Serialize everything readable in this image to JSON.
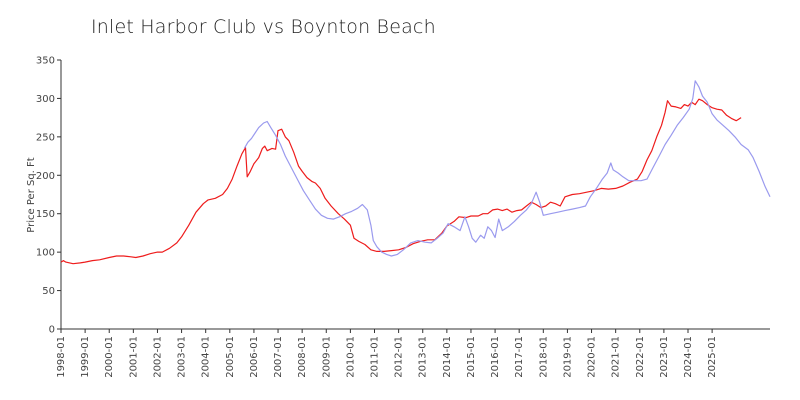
{
  "chart_data": {
    "type": "line",
    "title": "Inlet Harbor Club vs Boynton Beach",
    "xlabel": "",
    "ylabel": "Price Per Sq. Ft",
    "ylim": [
      0,
      350
    ],
    "yticks": [
      0,
      50,
      100,
      150,
      200,
      250,
      300,
      350
    ],
    "xlim": [
      1998.0,
      2026.2
    ],
    "xticks": [
      "1998-01",
      "1999-01",
      "2000-01",
      "2001-01",
      "2002-01",
      "2003-01",
      "2004-01",
      "2005-01",
      "2006-01",
      "2007-01",
      "2008-01",
      "2009-01",
      "2010-01",
      "2011-01",
      "2012-01",
      "2013-01",
      "2014-01",
      "2015-01",
      "2016-01",
      "2017-01",
      "2018-01",
      "2019-01",
      "2020-01",
      "2021-01",
      "2022-01",
      "2023-01",
      "2024-01",
      "2025-01"
    ],
    "grid": false,
    "legend": "none",
    "series": [
      {
        "color": "#ee1c1c",
        "points": [
          [
            1998.0,
            87
          ],
          [
            1998.1,
            89
          ],
          [
            1998.2,
            87
          ],
          [
            1998.5,
            85
          ],
          [
            1998.8,
            86
          ],
          [
            1999.0,
            87
          ],
          [
            1999.3,
            89
          ],
          [
            1999.6,
            90
          ],
          [
            2000.0,
            93
          ],
          [
            2000.3,
            95
          ],
          [
            2000.6,
            95
          ],
          [
            2000.9,
            94
          ],
          [
            2001.1,
            93
          ],
          [
            2001.4,
            95
          ],
          [
            2001.7,
            98
          ],
          [
            2002.0,
            100
          ],
          [
            2002.2,
            100
          ],
          [
            2002.5,
            105
          ],
          [
            2002.8,
            112
          ],
          [
            2003.0,
            120
          ],
          [
            2003.3,
            135
          ],
          [
            2003.6,
            152
          ],
          [
            2003.9,
            163
          ],
          [
            2004.1,
            168
          ],
          [
            2004.4,
            170
          ],
          [
            2004.7,
            175
          ],
          [
            2004.9,
            183
          ],
          [
            2005.1,
            195
          ],
          [
            2005.3,
            212
          ],
          [
            2005.5,
            228
          ],
          [
            2005.65,
            236
          ],
          [
            2005.72,
            198
          ],
          [
            2005.85,
            205
          ],
          [
            2006.0,
            215
          ],
          [
            2006.2,
            223
          ],
          [
            2006.35,
            235
          ],
          [
            2006.45,
            238
          ],
          [
            2006.55,
            232
          ],
          [
            2006.75,
            235
          ],
          [
            2006.9,
            234
          ],
          [
            2007.0,
            258
          ],
          [
            2007.15,
            260
          ],
          [
            2007.3,
            250
          ],
          [
            2007.45,
            245
          ],
          [
            2007.65,
            230
          ],
          [
            2007.85,
            212
          ],
          [
            2008.0,
            205
          ],
          [
            2008.2,
            197
          ],
          [
            2008.4,
            192
          ],
          [
            2008.55,
            190
          ],
          [
            2008.75,
            183
          ],
          [
            2008.95,
            170
          ],
          [
            2009.2,
            160
          ],
          [
            2009.5,
            150
          ],
          [
            2009.75,
            143
          ],
          [
            2010.0,
            135
          ],
          [
            2010.15,
            118
          ],
          [
            2010.35,
            114
          ],
          [
            2010.6,
            110
          ],
          [
            2010.85,
            103
          ],
          [
            2011.1,
            101
          ],
          [
            2011.4,
            101
          ],
          [
            2011.7,
            102
          ],
          [
            2012.0,
            103
          ],
          [
            2012.3,
            106
          ],
          [
            2012.6,
            111
          ],
          [
            2012.9,
            114
          ],
          [
            2013.2,
            116
          ],
          [
            2013.5,
            116
          ],
          [
            2013.8,
            125
          ],
          [
            2014.0,
            134
          ],
          [
            2014.3,
            140
          ],
          [
            2014.5,
            146
          ],
          [
            2014.8,
            145
          ],
          [
            2015.0,
            147
          ],
          [
            2015.3,
            147
          ],
          [
            2015.5,
            150
          ],
          [
            2015.7,
            150
          ],
          [
            2015.9,
            155
          ],
          [
            2016.1,
            156
          ],
          [
            2016.3,
            154
          ],
          [
            2016.5,
            156
          ],
          [
            2016.7,
            152
          ],
          [
            2016.9,
            154
          ],
          [
            2017.1,
            155
          ],
          [
            2017.3,
            160
          ],
          [
            2017.5,
            165
          ],
          [
            2017.7,
            162
          ],
          [
            2017.9,
            158
          ],
          [
            2018.1,
            160
          ],
          [
            2018.3,
            165
          ],
          [
            2018.5,
            163
          ],
          [
            2018.7,
            160
          ],
          [
            2018.9,
            172
          ],
          [
            2019.2,
            175
          ],
          [
            2019.5,
            176
          ],
          [
            2019.8,
            178
          ],
          [
            2020.1,
            180
          ],
          [
            2020.4,
            183
          ],
          [
            2020.7,
            182
          ],
          [
            2021.0,
            183
          ],
          [
            2021.3,
            186
          ],
          [
            2021.6,
            191
          ],
          [
            2021.9,
            195
          ],
          [
            2022.1,
            205
          ],
          [
            2022.3,
            220
          ],
          [
            2022.5,
            232
          ],
          [
            2022.7,
            250
          ],
          [
            2022.9,
            265
          ],
          [
            2023.05,
            282
          ],
          [
            2023.15,
            297
          ],
          [
            2023.3,
            290
          ],
          [
            2023.5,
            289
          ],
          [
            2023.7,
            287
          ],
          [
            2023.85,
            292
          ],
          [
            2024.0,
            290
          ],
          [
            2024.15,
            295
          ],
          [
            2024.3,
            292
          ],
          [
            2024.45,
            299
          ],
          [
            2024.6,
            297
          ],
          [
            2024.8,
            292
          ],
          [
            2025.0,
            288
          ],
          [
            2025.2,
            286
          ],
          [
            2025.4,
            285
          ],
          [
            2025.6,
            278
          ],
          [
            2025.8,
            274
          ],
          [
            2026.0,
            271
          ],
          [
            2026.1,
            273
          ],
          [
            2026.2,
            275
          ]
        ]
      },
      {
        "color": "#9a9aee",
        "points": [
          [
            2005.6,
            235
          ],
          [
            2005.75,
            243
          ],
          [
            2005.9,
            248
          ],
          [
            2006.05,
            255
          ],
          [
            2006.2,
            262
          ],
          [
            2006.4,
            268
          ],
          [
            2006.55,
            270
          ],
          [
            2006.7,
            262
          ],
          [
            2006.9,
            252
          ],
          [
            2007.1,
            240
          ],
          [
            2007.3,
            225
          ],
          [
            2007.55,
            210
          ],
          [
            2007.8,
            195
          ],
          [
            2008.05,
            180
          ],
          [
            2008.3,
            168
          ],
          [
            2008.55,
            156
          ],
          [
            2008.8,
            148
          ],
          [
            2009.05,
            144
          ],
          [
            2009.3,
            143
          ],
          [
            2009.55,
            146
          ],
          [
            2009.8,
            150
          ],
          [
            2010.05,
            153
          ],
          [
            2010.3,
            157
          ],
          [
            2010.5,
            162
          ],
          [
            2010.7,
            155
          ],
          [
            2010.85,
            135
          ],
          [
            2010.95,
            115
          ],
          [
            2011.1,
            107
          ],
          [
            2011.3,
            100
          ],
          [
            2011.5,
            97
          ],
          [
            2011.7,
            95
          ],
          [
            2011.95,
            97
          ],
          [
            2012.2,
            103
          ],
          [
            2012.5,
            112
          ],
          [
            2012.8,
            115
          ],
          [
            2013.1,
            113
          ],
          [
            2013.35,
            112
          ],
          [
            2013.6,
            118
          ],
          [
            2013.85,
            125
          ],
          [
            2014.05,
            137
          ],
          [
            2014.3,
            133
          ],
          [
            2014.55,
            128
          ],
          [
            2014.75,
            146
          ],
          [
            2014.9,
            133
          ],
          [
            2015.05,
            118
          ],
          [
            2015.2,
            113
          ],
          [
            2015.4,
            122
          ],
          [
            2015.55,
            118
          ],
          [
            2015.7,
            133
          ],
          [
            2015.85,
            128
          ],
          [
            2016.0,
            119
          ],
          [
            2016.15,
            143
          ],
          [
            2016.3,
            128
          ],
          [
            2016.55,
            133
          ],
          [
            2016.8,
            140
          ],
          [
            2017.05,
            148
          ],
          [
            2017.3,
            155
          ],
          [
            2017.5,
            163
          ],
          [
            2017.7,
            178
          ],
          [
            2017.85,
            165
          ],
          [
            2018.0,
            148
          ],
          [
            2018.3,
            150
          ],
          [
            2018.6,
            152
          ],
          [
            2018.9,
            154
          ],
          [
            2019.2,
            156
          ],
          [
            2019.5,
            158
          ],
          [
            2019.75,
            160
          ],
          [
            2019.95,
            172
          ],
          [
            2020.2,
            183
          ],
          [
            2020.45,
            195
          ],
          [
            2020.65,
            203
          ],
          [
            2020.8,
            216
          ],
          [
            2020.9,
            207
          ],
          [
            2021.1,
            203
          ],
          [
            2021.3,
            198
          ],
          [
            2021.55,
            193
          ],
          [
            2021.8,
            193
          ],
          [
            2022.05,
            193
          ],
          [
            2022.3,
            195
          ],
          [
            2022.55,
            210
          ],
          [
            2022.8,
            225
          ],
          [
            2023.05,
            240
          ],
          [
            2023.3,
            252
          ],
          [
            2023.55,
            265
          ],
          [
            2023.8,
            275
          ],
          [
            2024.05,
            286
          ],
          [
            2024.2,
            300
          ],
          [
            2024.3,
            323
          ],
          [
            2024.45,
            315
          ],
          [
            2024.6,
            303
          ],
          [
            2024.8,
            295
          ],
          [
            2025.0,
            280
          ],
          [
            2025.2,
            272
          ],
          [
            2025.45,
            265
          ],
          [
            2025.7,
            258
          ],
          [
            2025.95,
            250
          ],
          [
            2026.2,
            240
          ],
          [
            2026.5,
            233
          ],
          [
            2026.7,
            223
          ],
          [
            2026.95,
            205
          ],
          [
            2027.2,
            185
          ],
          [
            2027.4,
            172
          ]
        ]
      }
    ]
  }
}
